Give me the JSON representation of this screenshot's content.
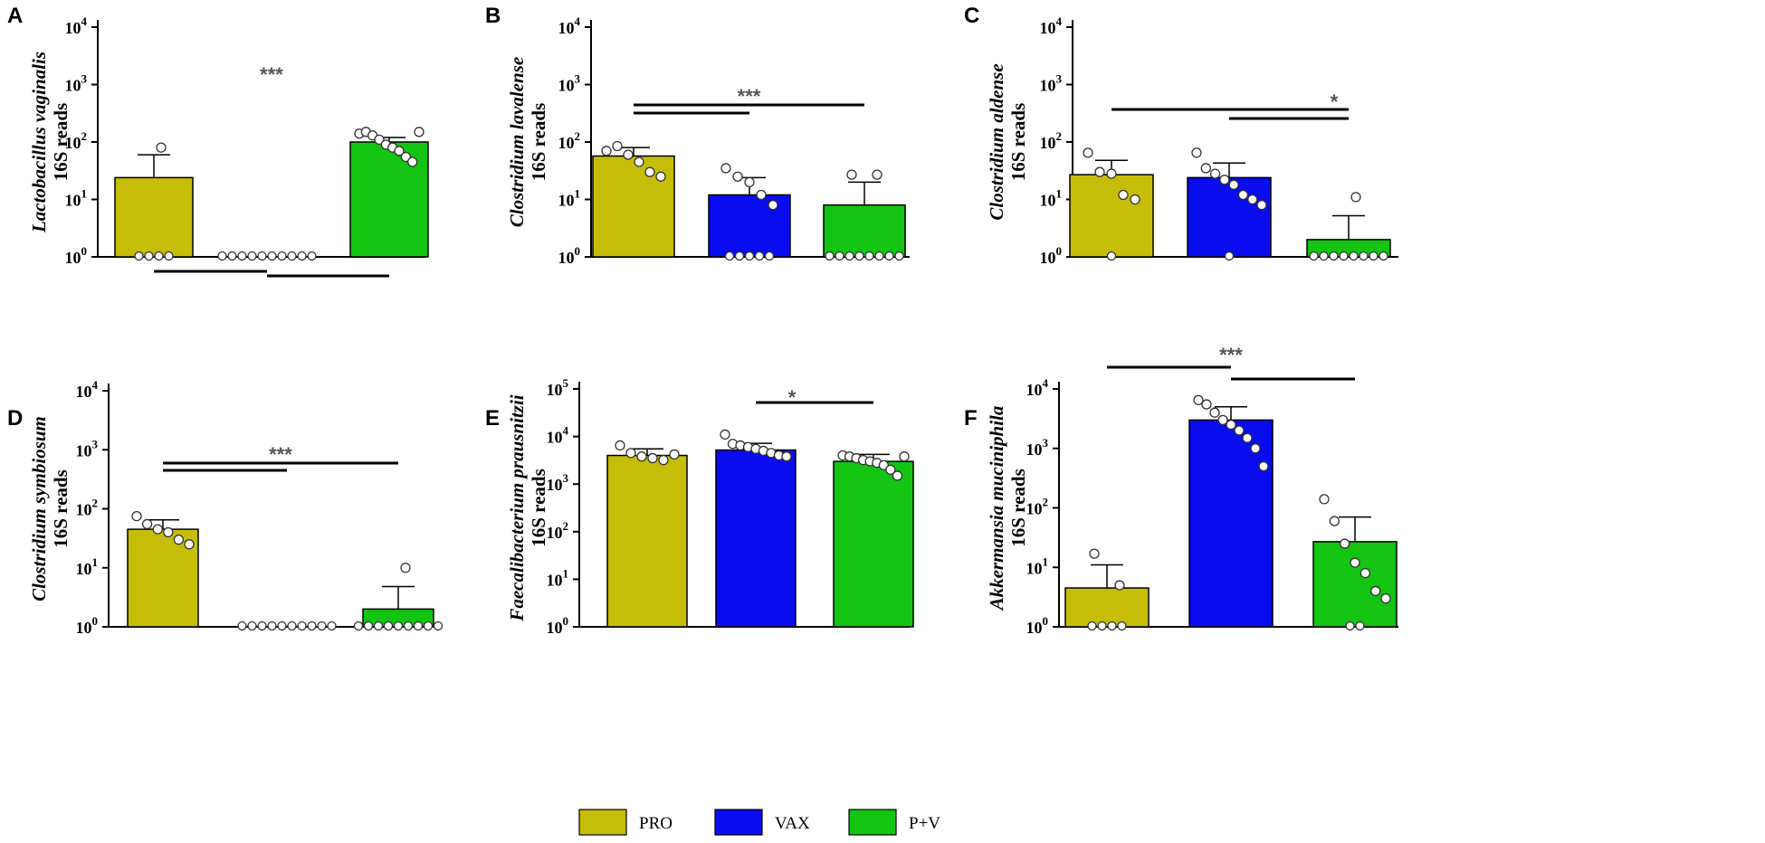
{
  "colors": {
    "PRO": "#c5bd07",
    "VAX": "#0a0cf0",
    "P+V": "#13c413",
    "axis": "#000000"
  },
  "legend": [
    {
      "key": "PRO",
      "label": "PRO"
    },
    {
      "key": "VAX",
      "label": "VAX"
    },
    {
      "key": "P+V",
      "label": "P+V"
    }
  ],
  "chart_data": [
    {
      "panel": "A",
      "type": "bar",
      "yscale": "log",
      "ylim": [
        1,
        10000
      ],
      "species": "Lactobacillus vaginalis",
      "ylabel_suffix": "16S reads",
      "ticks": [
        {
          "base": "10",
          "exp": "0",
          "value": 1
        },
        {
          "base": "10",
          "exp": "1",
          "value": 10
        },
        {
          "base": "10",
          "exp": "2",
          "value": 100
        },
        {
          "base": "10",
          "exp": "3",
          "value": 1000
        },
        {
          "base": "10",
          "exp": "4",
          "value": 10000
        }
      ],
      "groups": [
        {
          "name": "PRO",
          "mean": 24,
          "err": 60,
          "points": [
            80,
            1,
            1,
            1,
            1
          ]
        },
        {
          "name": "VAX",
          "mean": 1,
          "err": null,
          "points": [
            1,
            1,
            1,
            1,
            1,
            1,
            1,
            1,
            1,
            1
          ]
        },
        {
          "name": "P+V",
          "mean": 100,
          "err": 120,
          "points": [
            140,
            150,
            130,
            110,
            90,
            80,
            70,
            55,
            45,
            150
          ]
        }
      ],
      "significance": {
        "label": "***",
        "brackets": [
          [
            0,
            1
          ],
          [
            1,
            2
          ]
        ]
      }
    },
    {
      "panel": "B",
      "type": "bar",
      "yscale": "log",
      "ylim": [
        1,
        10000
      ],
      "species": "Clostridium lavalense",
      "ylabel_suffix": "16S reads",
      "ticks": [
        {
          "base": "10",
          "exp": "0",
          "value": 1
        },
        {
          "base": "10",
          "exp": "1",
          "value": 10
        },
        {
          "base": "10",
          "exp": "2",
          "value": 100
        },
        {
          "base": "10",
          "exp": "3",
          "value": 1000
        },
        {
          "base": "10",
          "exp": "4",
          "value": 10000
        }
      ],
      "groups": [
        {
          "name": "PRO",
          "mean": 57,
          "err": 80,
          "points": [
            70,
            85,
            60,
            45,
            30,
            25
          ]
        },
        {
          "name": "VAX",
          "mean": 12,
          "err": 24,
          "points": [
            35,
            25,
            20,
            12,
            8,
            1,
            1,
            1,
            1,
            1
          ]
        },
        {
          "name": "P+V",
          "mean": 8,
          "err": 20,
          "points": [
            27,
            27,
            1,
            1,
            1,
            1,
            1,
            1,
            1,
            1
          ]
        }
      ],
      "significance": {
        "label": "***",
        "brackets": [
          [
            0,
            1
          ],
          [
            0,
            2
          ]
        ]
      }
    },
    {
      "panel": "C",
      "type": "bar",
      "yscale": "log",
      "ylim": [
        1,
        10000
      ],
      "species": "Clostridium aldense",
      "ylabel_suffix": "16S reads",
      "ticks": [
        {
          "base": "10",
          "exp": "0",
          "value": 1
        },
        {
          "base": "10",
          "exp": "1",
          "value": 10
        },
        {
          "base": "10",
          "exp": "2",
          "value": 100
        },
        {
          "base": "10",
          "exp": "3",
          "value": 1000
        },
        {
          "base": "10",
          "exp": "4",
          "value": 10000
        }
      ],
      "groups": [
        {
          "name": "PRO",
          "mean": 27,
          "err": 48,
          "points": [
            65,
            30,
            28,
            12,
            10,
            1
          ]
        },
        {
          "name": "VAX",
          "mean": 24,
          "err": 43,
          "points": [
            65,
            35,
            28,
            22,
            18,
            12,
            10,
            8,
            1
          ]
        },
        {
          "name": "P+V",
          "mean": 2,
          "err": 5.2,
          "points": [
            11,
            1,
            1,
            1,
            1,
            1,
            1,
            1,
            1
          ]
        }
      ],
      "significance": {
        "label": "*",
        "brackets": [
          [
            0,
            2
          ],
          [
            1,
            2
          ]
        ]
      }
    },
    {
      "panel": "D",
      "type": "bar",
      "yscale": "log",
      "ylim": [
        1,
        10000
      ],
      "species": "Clostridium symbiosum",
      "ylabel_suffix": "16S reads",
      "ticks": [
        {
          "base": "10",
          "exp": "0",
          "value": 1
        },
        {
          "base": "10",
          "exp": "1",
          "value": 10
        },
        {
          "base": "10",
          "exp": "2",
          "value": 100
        },
        {
          "base": "10",
          "exp": "3",
          "value": 1000
        },
        {
          "base": "10",
          "exp": "4",
          "value": 10000
        }
      ],
      "groups": [
        {
          "name": "PRO",
          "mean": 45,
          "err": 65,
          "points": [
            75,
            55,
            45,
            40,
            30,
            25
          ]
        },
        {
          "name": "VAX",
          "mean": 1,
          "err": null,
          "points": [
            1,
            1,
            1,
            1,
            1,
            1,
            1,
            1,
            1,
            1
          ]
        },
        {
          "name": "P+V",
          "mean": 2,
          "err": 4.8,
          "points": [
            10,
            1,
            1,
            1,
            1,
            1,
            1,
            1,
            1,
            1
          ]
        }
      ],
      "significance": {
        "label": "***",
        "brackets": [
          [
            0,
            1
          ],
          [
            0,
            2
          ]
        ]
      }
    },
    {
      "panel": "E",
      "type": "bar",
      "yscale": "log",
      "ylim": [
        1,
        100000
      ],
      "species": "Faecalibacterium prausnitzii",
      "ylabel_suffix": "16S reads",
      "ticks": [
        {
          "base": "10",
          "exp": "0",
          "value": 1
        },
        {
          "base": "10",
          "exp": "1",
          "value": 10
        },
        {
          "base": "10",
          "exp": "2",
          "value": 100
        },
        {
          "base": "10",
          "exp": "3",
          "value": 1000
        },
        {
          "base": "10",
          "exp": "4",
          "value": 10000
        },
        {
          "base": "10",
          "exp": "5",
          "value": 100000
        }
      ],
      "groups": [
        {
          "name": "PRO",
          "mean": 4000,
          "err": 5500,
          "points": [
            6500,
            4500,
            3800,
            3500,
            3200,
            4200
          ]
        },
        {
          "name": "VAX",
          "mean": 5200,
          "err": 7200,
          "points": [
            11000,
            7000,
            6500,
            6000,
            5500,
            5000,
            4500,
            4000,
            3800
          ]
        },
        {
          "name": "P+V",
          "mean": 3000,
          "err": 4200,
          "points": [
            4000,
            3800,
            3500,
            3200,
            3000,
            2800,
            2500,
            2000,
            1500,
            3800
          ]
        }
      ],
      "significance": {
        "label": "*",
        "brackets": [
          [
            1,
            2
          ]
        ]
      }
    },
    {
      "panel": "F",
      "type": "bar",
      "yscale": "log",
      "ylim": [
        1,
        10000
      ],
      "species": "Akkermansia muciniphila",
      "ylabel_suffix": "16S reads",
      "ticks": [
        {
          "base": "10",
          "exp": "0",
          "value": 1
        },
        {
          "base": "10",
          "exp": "1",
          "value": 10
        },
        {
          "base": "10",
          "exp": "2",
          "value": 100
        },
        {
          "base": "10",
          "exp": "3",
          "value": 1000
        },
        {
          "base": "10",
          "exp": "4",
          "value": 10000
        }
      ],
      "groups": [
        {
          "name": "PRO",
          "mean": 4.5,
          "err": 11,
          "points": [
            17,
            5,
            1,
            1,
            1,
            1
          ]
        },
        {
          "name": "VAX",
          "mean": 3000,
          "err": 5000,
          "points": [
            6500,
            5500,
            4000,
            3000,
            2500,
            2000,
            1500,
            1000,
            500
          ]
        },
        {
          "name": "P+V",
          "mean": 27,
          "err": 70,
          "points": [
            140,
            60,
            25,
            12,
            8,
            4,
            3,
            1,
            1
          ]
        }
      ],
      "significance": {
        "label": "***",
        "brackets": [
          [
            0,
            1
          ],
          [
            1,
            2
          ]
        ]
      }
    }
  ]
}
